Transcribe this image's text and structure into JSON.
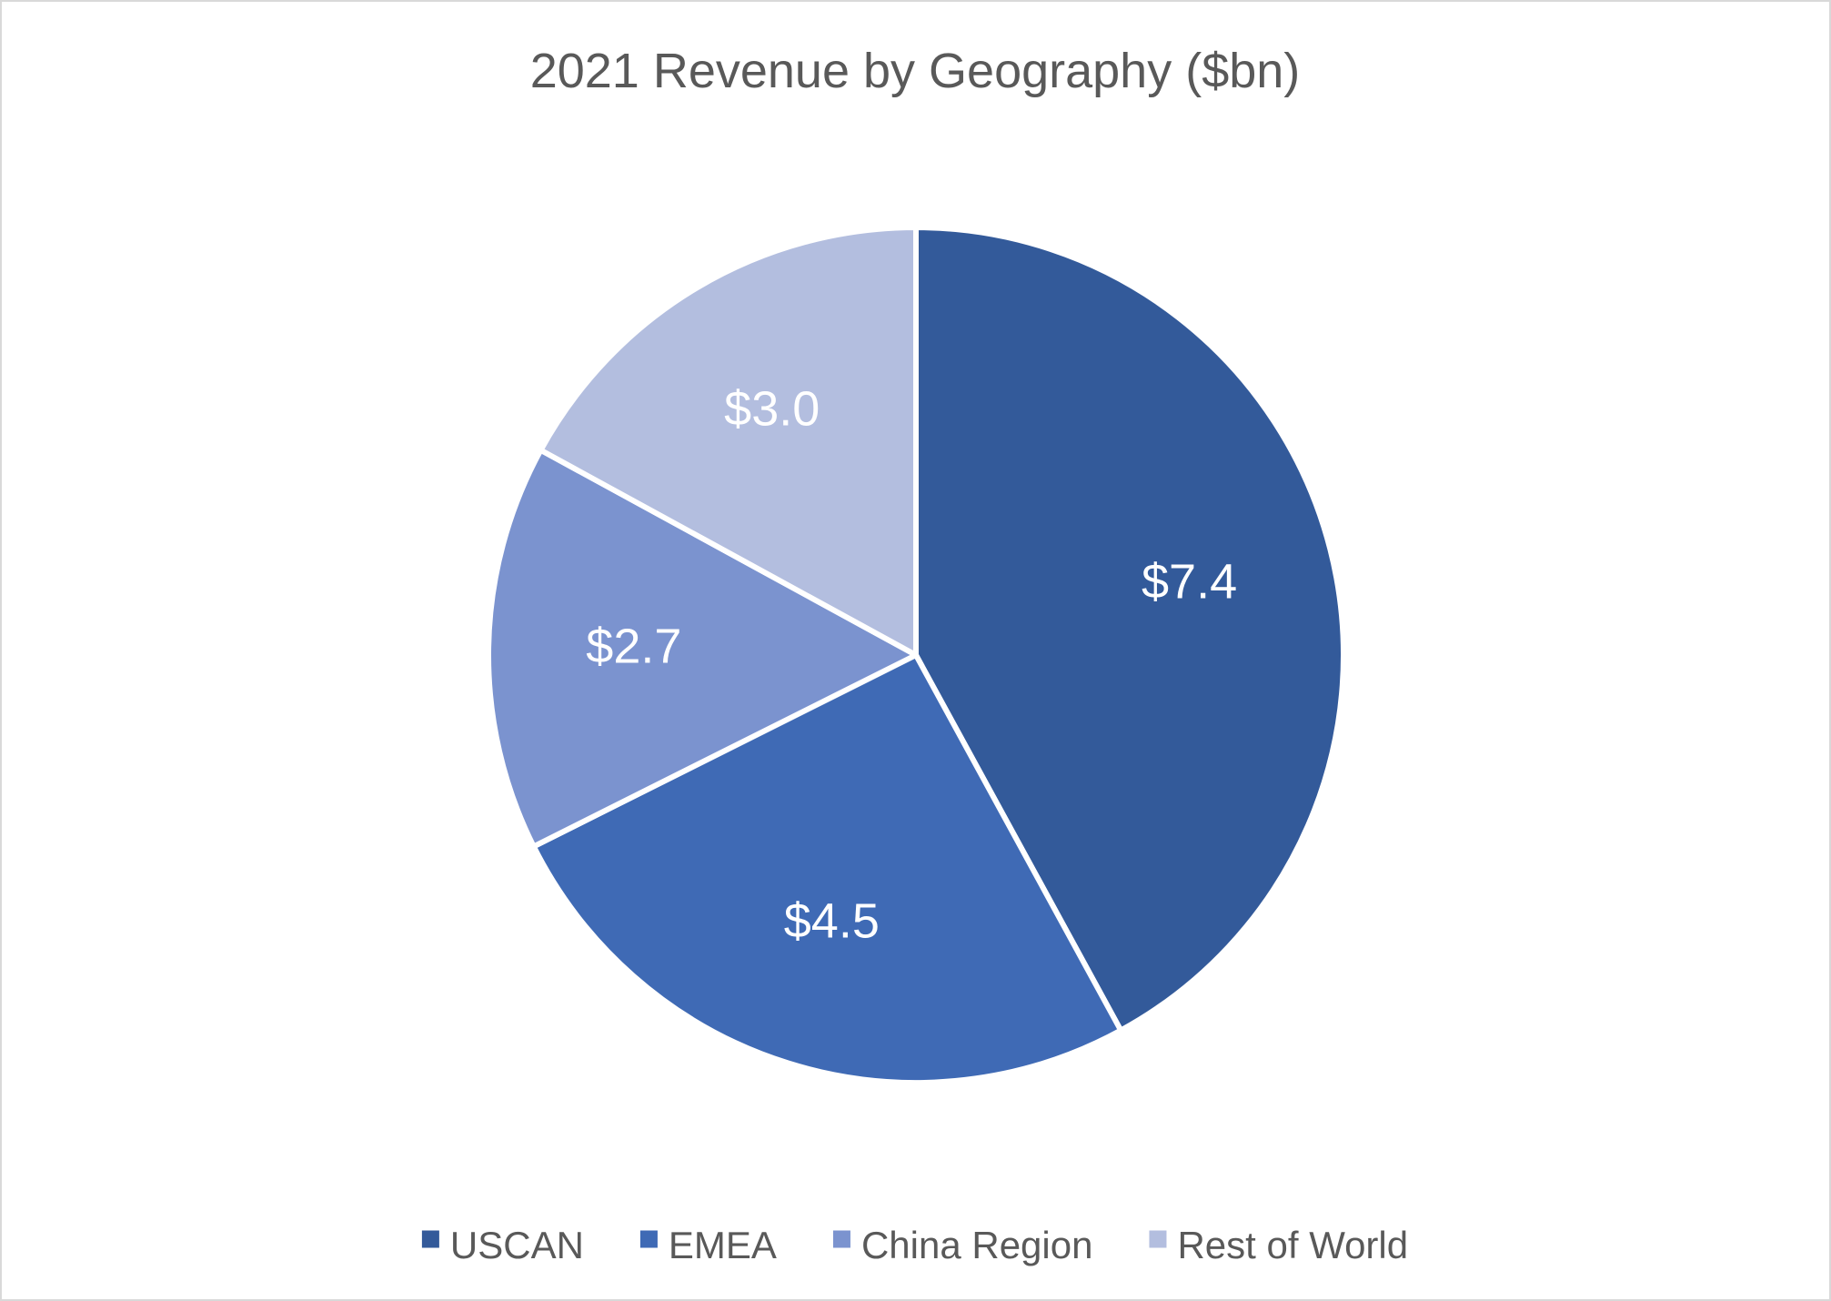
{
  "chart_data": {
    "type": "pie",
    "title": "2021 Revenue by Geography ($bn)",
    "categories": [
      "USCAN",
      "EMEA",
      "China Region",
      "Rest of World"
    ],
    "values": [
      7.4,
      4.5,
      2.7,
      3.0
    ],
    "data_labels": [
      "$7.4",
      "$4.5",
      "$2.7",
      "$3.0"
    ],
    "colors": [
      "#335A9A",
      "#3F6AB5",
      "#7B93CF",
      "#B3BEDF"
    ],
    "start_angle_deg": 0,
    "direction": "clockwise",
    "legend_position": "bottom"
  }
}
